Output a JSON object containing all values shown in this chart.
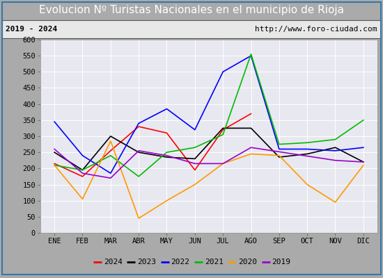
{
  "title": "Evolucion Nº Turistas Nacionales en el municipio de Rioja",
  "subtitle_left": "2019 - 2024",
  "subtitle_right": "http://www.foro-ciudad.com",
  "months": [
    "ENE",
    "FEB",
    "MAR",
    "ABR",
    "MAY",
    "JUN",
    "JUL",
    "AGO",
    "SEP",
    "OCT",
    "NOV",
    "DIC"
  ],
  "series": {
    "2024": [
      215,
      175,
      255,
      330,
      310,
      195,
      320,
      370,
      null,
      null,
      null,
      null
    ],
    "2023": [
      250,
      195,
      300,
      250,
      235,
      230,
      325,
      325,
      235,
      245,
      265,
      220
    ],
    "2022": [
      345,
      240,
      185,
      340,
      385,
      320,
      500,
      550,
      260,
      260,
      255,
      265
    ],
    "2021": [
      210,
      195,
      240,
      175,
      250,
      265,
      305,
      555,
      275,
      280,
      290,
      350
    ],
    "2020": [
      210,
      105,
      285,
      45,
      100,
      150,
      215,
      245,
      240,
      150,
      95,
      210
    ],
    "2019": [
      260,
      185,
      170,
      255,
      240,
      215,
      215,
      265,
      null,
      null,
      225,
      220
    ]
  },
  "colors": {
    "2024": "#ff0000",
    "2023": "#000000",
    "2022": "#0000ff",
    "2021": "#00bb00",
    "2020": "#ff9900",
    "2019": "#9900cc"
  },
  "ylim": [
    0,
    600
  ],
  "yticks": [
    0,
    50,
    100,
    150,
    200,
    250,
    300,
    350,
    400,
    450,
    500,
    550,
    600
  ],
  "title_bg_color": "#4499cc",
  "title_text_color": "#ffffff",
  "subtitle_bg_color": "#e8e8e8",
  "plot_bg_color": "#e8e8f0",
  "outer_bg_color": "#aaaaaa",
  "grid_color": "#ffffff",
  "border_color": "#3377aa",
  "title_fontsize": 11,
  "subtitle_fontsize": 8,
  "axis_fontsize": 7.5,
  "legend_fontsize": 8
}
